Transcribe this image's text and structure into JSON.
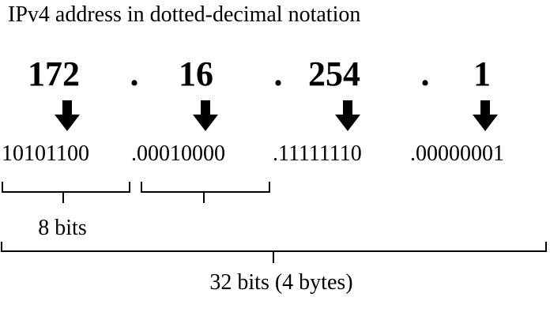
{
  "title": "IPv4 address in dotted-decimal notation",
  "octets": [
    {
      "decimal": "172",
      "binary": "10101100"
    },
    {
      "decimal": "16",
      "binary": ".00010000"
    },
    {
      "decimal": "254",
      "binary": ".11111110"
    },
    {
      "decimal": "1",
      "binary": ".00000001"
    }
  ],
  "separator": ".",
  "byte_label": "8 bits",
  "total_label": "32 bits (4 bytes)"
}
